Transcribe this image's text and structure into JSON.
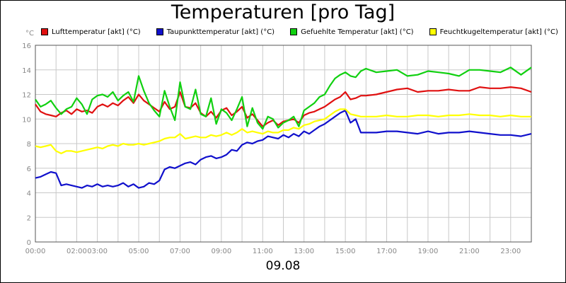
{
  "chart_data": {
    "type": "line",
    "title": "Temperaturen [pro Tag]",
    "ylabel": "°C",
    "footer": "09.08",
    "ylim": [
      0,
      16
    ],
    "xlim": [
      0,
      24
    ],
    "grid": true,
    "legend_position": "top",
    "y_ticks": [
      "0",
      "2",
      "4",
      "6",
      "8",
      "10",
      "12",
      "14",
      "16"
    ],
    "x_ticks": [
      {
        "hour": 0,
        "label": "00:00"
      },
      {
        "hour": 2,
        "label": "02:00"
      },
      {
        "hour": 3,
        "label": "03:00"
      },
      {
        "hour": 5,
        "label": "05:00"
      },
      {
        "hour": 7,
        "label": "07:00"
      },
      {
        "hour": 9,
        "label": "09:00"
      },
      {
        "hour": 11,
        "label": "11:00"
      },
      {
        "hour": 13,
        "label": "13:00"
      },
      {
        "hour": 15,
        "label": "15:00"
      },
      {
        "hour": 17,
        "label": "17:00"
      },
      {
        "hour": 19,
        "label": "19:00"
      },
      {
        "hour": 21,
        "label": "21:00"
      },
      {
        "hour": 23,
        "label": "23:00"
      }
    ],
    "series": [
      {
        "name": "Lufttemperatur [akt] (°C)",
        "color": "#e01010",
        "x": [
          0,
          0.25,
          0.5,
          0.75,
          1,
          1.25,
          1.5,
          1.75,
          2,
          2.25,
          2.5,
          2.75,
          3,
          3.25,
          3.5,
          3.75,
          4,
          4.25,
          4.5,
          4.75,
          5,
          5.25,
          5.5,
          5.75,
          6,
          6.25,
          6.5,
          6.75,
          7,
          7.25,
          7.5,
          7.75,
          8,
          8.25,
          8.5,
          8.75,
          9,
          9.25,
          9.5,
          9.75,
          10,
          10.25,
          10.5,
          10.75,
          11,
          11.25,
          11.5,
          11.75,
          12,
          12.25,
          12.5,
          12.75,
          13,
          13.25,
          13.5,
          13.75,
          14,
          14.25,
          14.5,
          14.75,
          15,
          15.25,
          15.5,
          15.75,
          16,
          16.5,
          17,
          17.5,
          18,
          18.5,
          19,
          19.5,
          20,
          20.5,
          21,
          21.5,
          22,
          22.5,
          23,
          23.5,
          24
        ],
        "values": [
          11.2,
          10.6,
          10.4,
          10.3,
          10.2,
          10.5,
          10.7,
          10.4,
          10.8,
          10.6,
          10.7,
          10.5,
          11.0,
          11.2,
          11.0,
          11.3,
          11.1,
          11.5,
          11.8,
          11.3,
          12.0,
          11.5,
          11.2,
          10.9,
          10.6,
          11.4,
          10.8,
          11.0,
          12.2,
          11.0,
          10.9,
          11.3,
          10.5,
          10.2,
          10.6,
          10.1,
          10.7,
          10.9,
          10.3,
          10.6,
          11.0,
          10.1,
          10.4,
          9.9,
          9.4,
          9.7,
          9.9,
          9.5,
          9.8,
          9.9,
          10.0,
          9.7,
          10.3,
          10.5,
          10.6,
          10.8,
          11.0,
          11.3,
          11.6,
          11.8,
          12.2,
          11.6,
          11.7,
          11.9,
          11.9,
          12.0,
          12.2,
          12.4,
          12.5,
          12.2,
          12.3,
          12.3,
          12.4,
          12.3,
          12.3,
          12.6,
          12.5,
          12.5,
          12.6,
          12.5,
          12.2
        ]
      },
      {
        "name": "Taupunkttemperatur [akt] (°C)",
        "color": "#1010cc",
        "x": [
          0,
          0.25,
          0.5,
          0.75,
          1,
          1.25,
          1.5,
          1.75,
          2,
          2.25,
          2.5,
          2.75,
          3,
          3.25,
          3.5,
          3.75,
          4,
          4.25,
          4.5,
          4.75,
          5,
          5.25,
          5.5,
          5.75,
          6,
          6.25,
          6.5,
          6.75,
          7,
          7.25,
          7.5,
          7.75,
          8,
          8.25,
          8.5,
          8.75,
          9,
          9.25,
          9.5,
          9.75,
          10,
          10.25,
          10.5,
          10.75,
          11,
          11.25,
          11.5,
          11.75,
          12,
          12.25,
          12.5,
          12.75,
          13,
          13.25,
          13.5,
          13.75,
          14,
          14.25,
          14.5,
          14.75,
          15,
          15.25,
          15.5,
          15.75,
          16,
          16.5,
          17,
          17.5,
          18,
          18.5,
          19,
          19.5,
          20,
          20.5,
          21,
          21.5,
          22,
          22.5,
          23,
          23.5,
          24
        ],
        "values": [
          5.2,
          5.3,
          5.5,
          5.7,
          5.6,
          4.6,
          4.7,
          4.6,
          4.5,
          4.4,
          4.6,
          4.5,
          4.7,
          4.5,
          4.6,
          4.5,
          4.6,
          4.8,
          4.5,
          4.7,
          4.4,
          4.5,
          4.8,
          4.7,
          5.0,
          5.9,
          6.1,
          6.0,
          6.2,
          6.4,
          6.5,
          6.3,
          6.7,
          6.9,
          7.0,
          6.8,
          6.9,
          7.1,
          7.5,
          7.4,
          7.9,
          8.1,
          8.0,
          8.2,
          8.3,
          8.6,
          8.5,
          8.4,
          8.7,
          8.5,
          8.8,
          8.6,
          9.0,
          8.8,
          9.1,
          9.4,
          9.6,
          9.9,
          10.2,
          10.5,
          10.7,
          9.7,
          10.0,
          8.9,
          8.9,
          8.9,
          9.0,
          9.0,
          8.9,
          8.8,
          9.0,
          8.8,
          8.9,
          8.9,
          9.0,
          8.9,
          8.8,
          8.7,
          8.7,
          8.6,
          8.8
        ]
      },
      {
        "name": "Gefuehlte Temperatur [akt] (°C)",
        "color": "#10d010",
        "x": [
          0,
          0.25,
          0.5,
          0.75,
          1,
          1.25,
          1.5,
          1.75,
          2,
          2.25,
          2.5,
          2.75,
          3,
          3.25,
          3.5,
          3.75,
          4,
          4.25,
          4.5,
          4.75,
          5,
          5.25,
          5.5,
          5.75,
          6,
          6.25,
          6.5,
          6.75,
          7,
          7.25,
          7.5,
          7.75,
          8,
          8.25,
          8.5,
          8.75,
          9,
          9.25,
          9.5,
          9.75,
          10,
          10.25,
          10.5,
          10.75,
          11,
          11.25,
          11.5,
          11.75,
          12,
          12.25,
          12.5,
          12.75,
          13,
          13.25,
          13.5,
          13.75,
          14,
          14.25,
          14.5,
          14.75,
          15,
          15.25,
          15.5,
          15.75,
          16,
          16.5,
          17,
          17.5,
          18,
          18.5,
          19,
          19.5,
          20,
          20.5,
          21,
          21.5,
          22,
          22.5,
          23,
          23.5,
          24
        ],
        "values": [
          11.6,
          11.0,
          11.2,
          11.5,
          10.9,
          10.4,
          10.8,
          11.0,
          11.7,
          11.2,
          10.4,
          11.6,
          11.9,
          12.0,
          11.8,
          12.2,
          11.5,
          11.9,
          12.2,
          11.4,
          13.5,
          12.3,
          11.3,
          10.7,
          10.2,
          12.3,
          11.0,
          9.9,
          13.0,
          11.0,
          10.8,
          12.4,
          10.4,
          10.2,
          11.7,
          9.6,
          10.8,
          10.5,
          9.9,
          10.8,
          11.8,
          9.4,
          10.9,
          9.7,
          9.2,
          10.2,
          10.0,
          9.3,
          9.7,
          9.9,
          10.2,
          9.4,
          10.7,
          11.0,
          11.3,
          11.8,
          12.0,
          12.7,
          13.3,
          13.6,
          13.8,
          13.5,
          13.4,
          13.9,
          14.1,
          13.8,
          13.9,
          14.0,
          13.5,
          13.6,
          13.9,
          13.8,
          13.7,
          13.5,
          14.0,
          14.0,
          13.9,
          13.8,
          14.2,
          13.6,
          14.2
        ]
      },
      {
        "name": "Feuchtkugeltemperatur [akt] (°C)",
        "color": "#ffff00",
        "x": [
          0,
          0.25,
          0.5,
          0.75,
          1,
          1.25,
          1.5,
          1.75,
          2,
          2.25,
          2.5,
          2.75,
          3,
          3.25,
          3.5,
          3.75,
          4,
          4.25,
          4.5,
          4.75,
          5,
          5.25,
          5.5,
          5.75,
          6,
          6.25,
          6.5,
          6.75,
          7,
          7.25,
          7.5,
          7.75,
          8,
          8.25,
          8.5,
          8.75,
          9,
          9.25,
          9.5,
          9.75,
          10,
          10.25,
          10.5,
          10.75,
          11,
          11.25,
          11.5,
          11.75,
          12,
          12.25,
          12.5,
          12.75,
          13,
          13.25,
          13.5,
          13.75,
          14,
          14.25,
          14.5,
          14.75,
          15,
          15.25,
          15.5,
          15.75,
          16,
          16.5,
          17,
          17.5,
          18,
          18.5,
          19,
          19.5,
          20,
          20.5,
          21,
          21.5,
          22,
          22.5,
          23,
          23.5,
          24
        ],
        "values": [
          7.8,
          7.7,
          7.8,
          7.9,
          7.4,
          7.2,
          7.4,
          7.4,
          7.3,
          7.4,
          7.5,
          7.6,
          7.7,
          7.6,
          7.8,
          7.9,
          7.8,
          8.0,
          7.9,
          7.9,
          8.0,
          7.9,
          8.0,
          8.1,
          8.2,
          8.4,
          8.5,
          8.5,
          8.8,
          8.4,
          8.5,
          8.6,
          8.5,
          8.5,
          8.7,
          8.6,
          8.7,
          8.9,
          8.7,
          8.9,
          9.2,
          8.9,
          9.0,
          8.9,
          8.8,
          9.0,
          8.9,
          8.9,
          9.1,
          9.1,
          9.3,
          9.2,
          9.5,
          9.6,
          9.8,
          9.9,
          10.0,
          10.3,
          10.6,
          10.8,
          10.8,
          10.4,
          10.3,
          10.2,
          10.2,
          10.2,
          10.3,
          10.2,
          10.2,
          10.3,
          10.3,
          10.2,
          10.3,
          10.3,
          10.4,
          10.3,
          10.3,
          10.2,
          10.3,
          10.2,
          10.2
        ]
      }
    ]
  }
}
